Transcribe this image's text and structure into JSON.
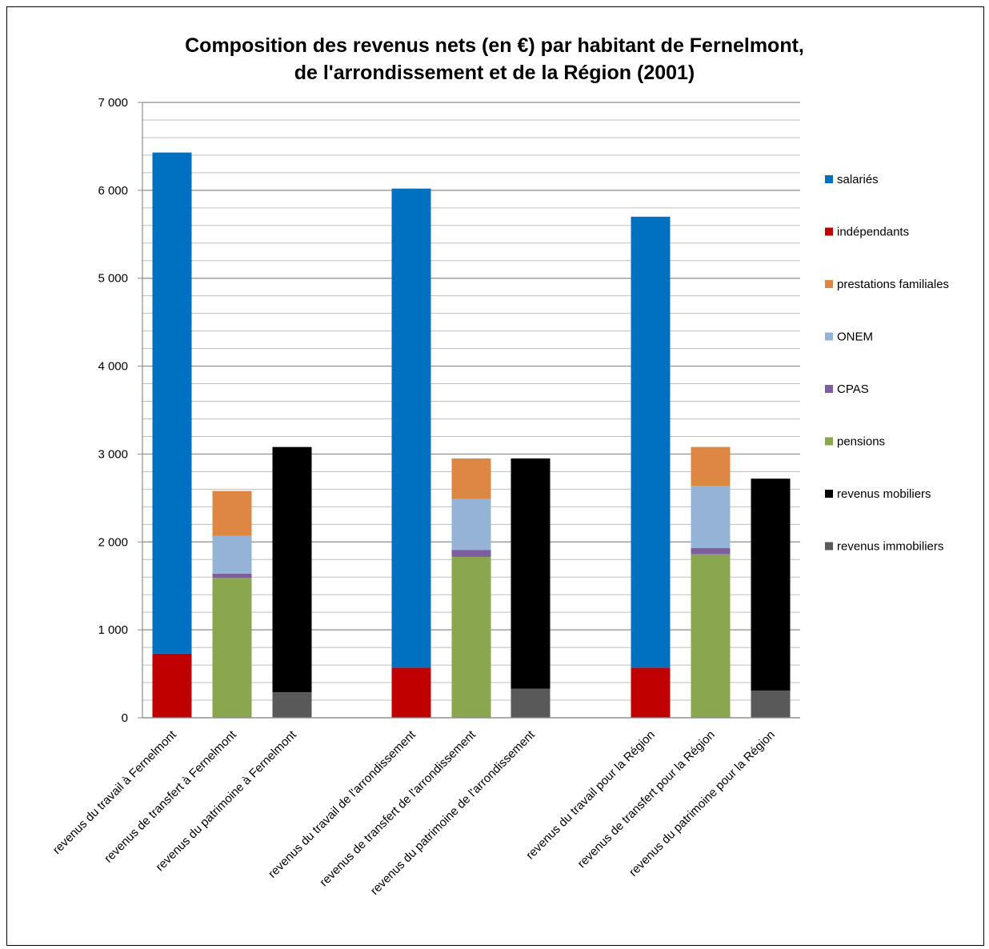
{
  "chart_data": {
    "type": "bar",
    "stacked": true,
    "title_lines": [
      "Composition des revenus nets (en €) par habitant de Fernelmont,",
      "de l'arrondissement et de la Région (2001)"
    ],
    "ylim": [
      0,
      7000
    ],
    "yticks": [
      0,
      1000,
      2000,
      3000,
      4000,
      5000,
      6000,
      7000
    ],
    "ytick_labels": [
      "0",
      "1 000",
      "2 000",
      "3 000",
      "4 000",
      "5 000",
      "6 000",
      "7 000"
    ],
    "grid": true,
    "legend_position": "right",
    "categories": [
      "revenus du travail à Fernelmont",
      "revenus de transfert à Fernelmont",
      "revenus du patrimoine à Fernelmont",
      "revenus du travail de l'arrondissement",
      "revenus de transfert de l'arrondissement",
      "revenus du patrimoine de l'arrondissement",
      "revenus du travail pour la Région",
      "revenus de transfert pour la Région",
      "revenus du patrimoine pour la Région"
    ],
    "groups": [
      [
        0,
        1,
        2
      ],
      [
        3,
        4,
        5
      ],
      [
        6,
        7,
        8
      ]
    ],
    "stack_order": [
      "revenus immobiliers",
      "revenus mobiliers",
      "pensions",
      "CPAS",
      "ONEM",
      "prestations familiales",
      "indépendants",
      "salariés"
    ],
    "series": [
      {
        "name": "salariés",
        "color": "#0070C0",
        "values": [
          5700,
          0,
          0,
          5450,
          0,
          0,
          5130,
          0,
          0
        ]
      },
      {
        "name": "indépendants",
        "color": "#C00000",
        "values": [
          730,
          0,
          0,
          570,
          0,
          0,
          570,
          0,
          0
        ]
      },
      {
        "name": "prestations familiales",
        "color": "#DE8744",
        "values": [
          0,
          510,
          0,
          0,
          460,
          0,
          0,
          440,
          0
        ]
      },
      {
        "name": "ONEM",
        "color": "#95B3D7",
        "values": [
          0,
          430,
          0,
          0,
          580,
          0,
          0,
          710,
          0
        ]
      },
      {
        "name": "CPAS",
        "color": "#7D5F9F",
        "values": [
          0,
          50,
          0,
          0,
          80,
          0,
          0,
          70,
          0
        ]
      },
      {
        "name": "pensions",
        "color": "#8AA64F",
        "values": [
          0,
          1590,
          0,
          0,
          1830,
          0,
          0,
          1860,
          0
        ]
      },
      {
        "name": "revenus mobiliers",
        "color": "#000000",
        "values": [
          0,
          0,
          2790,
          0,
          0,
          2620,
          0,
          0,
          2410
        ]
      },
      {
        "name": "revenus immobiliers",
        "color": "#595959",
        "values": [
          0,
          0,
          290,
          0,
          0,
          330,
          0,
          0,
          310
        ]
      }
    ]
  }
}
